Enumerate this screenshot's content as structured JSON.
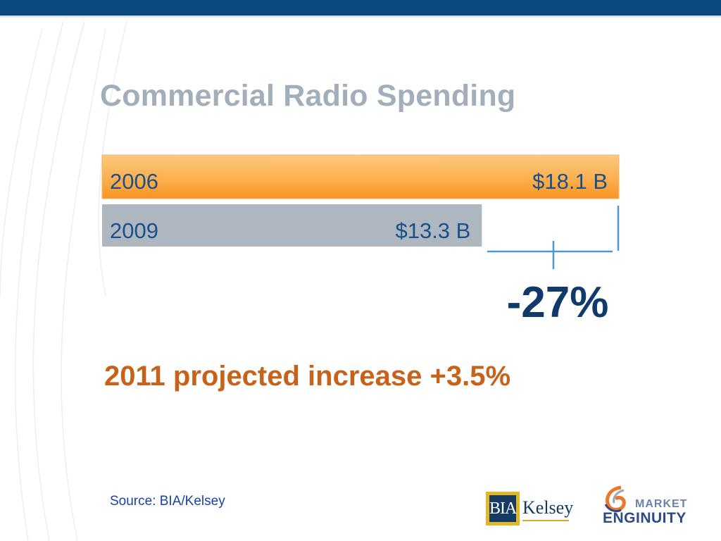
{
  "slide": {
    "title": "Commercial Radio Spending",
    "projection": "2011 projected increase +3.5%",
    "source": "Source: BIA/Kelsey"
  },
  "chart_data": {
    "type": "bar",
    "orientation": "horizontal",
    "categories": [
      "2006",
      "2009"
    ],
    "values": [
      18.1,
      13.3
    ],
    "value_labels": [
      "$18.1 B",
      "$13.3 B"
    ],
    "unit": "$ billions",
    "bar_colors": [
      "#fca741",
      "#aeb7bf"
    ],
    "change_label": "-27%",
    "title": "Commercial Radio Spending",
    "xlabel": "",
    "ylabel": ""
  },
  "logos": {
    "bia_kelsey": {
      "bia": "BIA",
      "kelsey": "Kelsey"
    },
    "market_enginuity": {
      "market": "MARKET",
      "enginuity": "ENGINUITY"
    }
  },
  "colors": {
    "header_bar": "#0b4a80",
    "title": "#a2afba",
    "projection": "#c6621a",
    "bracket": "#4a9ad8"
  }
}
